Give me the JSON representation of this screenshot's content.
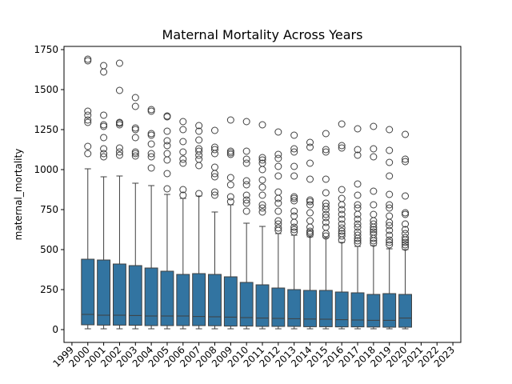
{
  "chart_data": {
    "type": "box",
    "title": "Maternal Mortality Across Years",
    "xlabel": "",
    "ylabel": "maternal_mortality",
    "xlim": [
      1998.5,
      2023.5
    ],
    "ylim": [
      -80,
      1770
    ],
    "x_ticks": [
      1999,
      2000,
      2001,
      2002,
      2003,
      2004,
      2005,
      2006,
      2007,
      2008,
      2009,
      2010,
      2011,
      2012,
      2013,
      2014,
      2015,
      2016,
      2017,
      2018,
      2019,
      2020,
      2021,
      2022,
      2023
    ],
    "y_ticks": [
      0,
      250,
      500,
      750,
      1000,
      1250,
      1500,
      1750
    ],
    "box_color": "#3274a1",
    "grid": false,
    "boxes": [
      {
        "year": 2000,
        "whisker_low": 5,
        "q1": 30,
        "median": 95,
        "q3": 440,
        "whisker_high": 1005,
        "outliers": [
          1100,
          1145,
          1295,
          1310,
          1340,
          1365,
          1680,
          1690
        ]
      },
      {
        "year": 2001,
        "whisker_low": 5,
        "q1": 28,
        "median": 90,
        "q3": 435,
        "whisker_high": 955,
        "outliers": [
          1080,
          1100,
          1130,
          1200,
          1270,
          1280,
          1340,
          1610,
          1650
        ]
      },
      {
        "year": 2002,
        "whisker_low": 5,
        "q1": 28,
        "median": 90,
        "q3": 410,
        "whisker_high": 960,
        "outliers": [
          1090,
          1110,
          1135,
          1280,
          1290,
          1295,
          1495,
          1665
        ]
      },
      {
        "year": 2003,
        "whisker_low": 5,
        "q1": 27,
        "median": 88,
        "q3": 400,
        "whisker_high": 915,
        "outliers": [
          1085,
          1100,
          1110,
          1200,
          1250,
          1260,
          1395,
          1450
        ]
      },
      {
        "year": 2004,
        "whisker_low": 5,
        "q1": 25,
        "median": 85,
        "q3": 385,
        "whisker_high": 900,
        "outliers": [
          1010,
          1080,
          1100,
          1160,
          1215,
          1225,
          1365,
          1375
        ]
      },
      {
        "year": 2005,
        "whisker_low": 5,
        "q1": 25,
        "median": 85,
        "q3": 365,
        "whisker_high": 845,
        "outliers": [
          880,
          975,
          1060,
          1100,
          1150,
          1180,
          1240,
          1330,
          1335
        ]
      },
      {
        "year": 2006,
        "whisker_low": 5,
        "q1": 25,
        "median": 85,
        "q3": 345,
        "whisker_high": 820,
        "outliers": [
          840,
          875,
          1040,
          1065,
          1110,
          1175,
          1250,
          1300
        ]
      },
      {
        "year": 2007,
        "whisker_low": 5,
        "q1": 25,
        "median": 82,
        "q3": 350,
        "whisker_high": 835,
        "outliers": [
          850,
          1025,
          1065,
          1090,
          1115,
          1130,
          1185,
          1240,
          1275
        ]
      },
      {
        "year": 2008,
        "whisker_low": 5,
        "q1": 24,
        "median": 80,
        "q3": 345,
        "whisker_high": 735,
        "outliers": [
          840,
          860,
          955,
          975,
          1015,
          1100,
          1125,
          1140,
          1245
        ]
      },
      {
        "year": 2009,
        "whisker_low": 5,
        "q1": 22,
        "median": 78,
        "q3": 330,
        "whisker_high": 780,
        "outliers": [
          800,
          830,
          905,
          950,
          1095,
          1105,
          1115,
          1310
        ]
      },
      {
        "year": 2010,
        "whisker_low": 5,
        "q1": 22,
        "median": 75,
        "q3": 295,
        "whisker_high": 665,
        "outliers": [
          740,
          790,
          810,
          840,
          905,
          930,
          1040,
          1065,
          1115,
          1300
        ]
      },
      {
        "year": 2011,
        "whisker_low": 5,
        "q1": 20,
        "median": 72,
        "q3": 280,
        "whisker_high": 645,
        "outliers": [
          735,
          760,
          780,
          840,
          890,
          935,
          1000,
          1040,
          1060,
          1075,
          1280
        ]
      },
      {
        "year": 2012,
        "whisker_low": 5,
        "q1": 20,
        "median": 70,
        "q3": 260,
        "whisker_high": 600,
        "outliers": [
          620,
          635,
          660,
          680,
          740,
          790,
          820,
          860,
          960,
          1020,
          1070,
          1095,
          1235
        ]
      },
      {
        "year": 2013,
        "whisker_low": 5,
        "q1": 20,
        "median": 68,
        "q3": 250,
        "whisker_high": 590,
        "outliers": [
          610,
          625,
          640,
          670,
          710,
          740,
          805,
          820,
          830,
          960,
          1020,
          1110,
          1130,
          1215
        ]
      },
      {
        "year": 2014,
        "whisker_low": 5,
        "q1": 18,
        "median": 66,
        "q3": 245,
        "whisker_high": 580,
        "outliers": [
          595,
          605,
          615,
          640,
          680,
          730,
          780,
          800,
          810,
          940,
          1040,
          1140,
          1170
        ]
      },
      {
        "year": 2015,
        "whisker_low": 5,
        "q1": 18,
        "median": 65,
        "q3": 245,
        "whisker_high": 575,
        "outliers": [
          585,
          600,
          640,
          670,
          700,
          720,
          750,
          770,
          790,
          855,
          940,
          1110,
          1125,
          1225
        ]
      },
      {
        "year": 2016,
        "whisker_low": 5,
        "q1": 17,
        "median": 62,
        "q3": 235,
        "whisker_high": 545,
        "outliers": [
          560,
          585,
          600,
          615,
          635,
          660,
          690,
          720,
          750,
          780,
          820,
          875,
          1135,
          1150,
          1285
        ]
      },
      {
        "year": 2017,
        "whisker_low": 5,
        "q1": 17,
        "median": 60,
        "q3": 230,
        "whisker_high": 520,
        "outliers": [
          540,
          555,
          570,
          590,
          610,
          640,
          660,
          690,
          720,
          760,
          780,
          840,
          910,
          1090,
          1125,
          1255
        ]
      },
      {
        "year": 2018,
        "whisker_low": 5,
        "q1": 16,
        "median": 58,
        "q3": 220,
        "whisker_high": 525,
        "outliers": [
          540,
          555,
          570,
          595,
          610,
          625,
          640,
          660,
          680,
          720,
          780,
          865,
          1080,
          1130,
          1270
        ]
      },
      {
        "year": 2019,
        "whisker_low": 5,
        "q1": 15,
        "median": 58,
        "q3": 225,
        "whisker_high": 505,
        "outliers": [
          530,
          545,
          560,
          590,
          620,
          650,
          670,
          710,
          760,
          780,
          845,
          960,
          1045,
          1120,
          1250
        ]
      },
      {
        "year": 2020,
        "whisker_low": 5,
        "q1": 15,
        "median": 72,
        "q3": 220,
        "whisker_high": 500,
        "outliers": [
          515,
          530,
          545,
          560,
          575,
          600,
          625,
          660,
          720,
          730,
          835,
          1050,
          1065,
          1220
        ]
      }
    ]
  }
}
